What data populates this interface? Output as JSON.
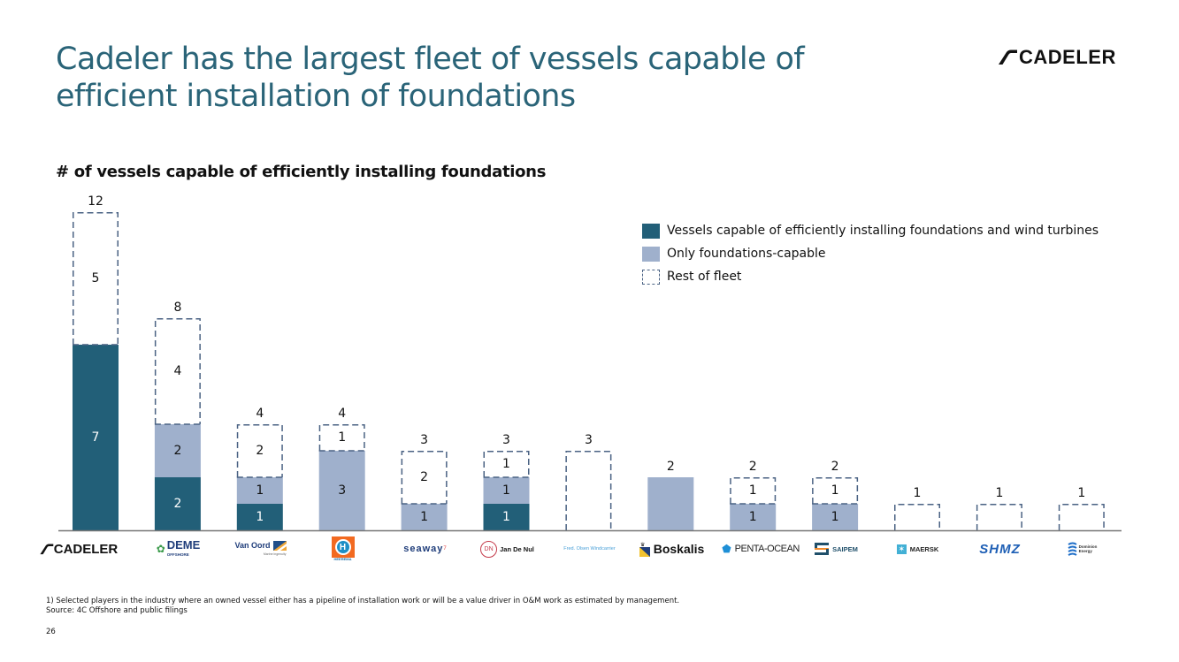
{
  "header": {
    "title": "Cadeler has the largest fleet of vessels capable of efficient installation of foundations",
    "brand": "CADELER"
  },
  "colors": {
    "title": "#2a6478",
    "both_capable": "#225f78",
    "foundations_only": "#9fb0cc",
    "rest_outline": "#4a6283"
  },
  "chart_data": {
    "type": "bar",
    "stacked": true,
    "title": "# of vessels capable of efficiently installing foundations",
    "xlabel": "",
    "ylabel": "",
    "ylim": [
      0,
      12
    ],
    "grid": false,
    "legend_position": "top-right",
    "categories": [
      "Cadeler",
      "DEME Offshore",
      "Van Oord",
      "Heerema",
      "Seaway7",
      "Jan De Nul",
      "Fred. Olsen Windcarrier",
      "Boskalis",
      "Penta-Ocean",
      "Saipem",
      "Maersk",
      "SHMZ",
      "Dominion Energy"
    ],
    "series": [
      {
        "name": "Vessels capable of efficiently installing foundations and wind turbines",
        "style": "solid-dark",
        "values": [
          7,
          2,
          1,
          0,
          0,
          1,
          0,
          0,
          0,
          0,
          0,
          0,
          0
        ]
      },
      {
        "name": "Only foundations-capable",
        "style": "solid-light",
        "values": [
          0,
          2,
          1,
          3,
          1,
          1,
          0,
          2,
          1,
          1,
          0,
          0,
          0
        ]
      },
      {
        "name": "Rest of fleet",
        "style": "dashed-outline",
        "values": [
          5,
          4,
          2,
          1,
          2,
          1,
          3,
          0,
          1,
          1,
          1,
          1,
          1
        ]
      }
    ],
    "totals": [
      12,
      8,
      4,
      4,
      3,
      3,
      3,
      2,
      2,
      2,
      1,
      1,
      1
    ]
  },
  "logos": [
    {
      "name": "cadeler-logo",
      "text": "CADELER"
    },
    {
      "name": "deme-logo",
      "text": "DEME",
      "sub": "OFFSHORE"
    },
    {
      "name": "van-oord-logo",
      "text": "Van Oord",
      "sub": "Marine ingenuity"
    },
    {
      "name": "heerema-logo",
      "text": "H",
      "sub": "HEEREMA"
    },
    {
      "name": "seaway7-logo",
      "text": "seaway",
      "sup": "7"
    },
    {
      "name": "jan-de-nul-logo",
      "text": "Jan De Nul",
      "mark": "DN"
    },
    {
      "name": "fred-olsen-logo",
      "text": "Fred. Olsen Windcarrier"
    },
    {
      "name": "boskalis-logo",
      "text": "Boskalis"
    },
    {
      "name": "penta-ocean-logo",
      "text": "PENTA-OCEAN"
    },
    {
      "name": "saipem-logo",
      "text": "SAIPEM"
    },
    {
      "name": "maersk-logo",
      "text": "MAERSK"
    },
    {
      "name": "shmz-logo",
      "text": "SHMZ"
    },
    {
      "name": "dominion-energy-logo",
      "text": "Dominion",
      "sub": "Energy"
    }
  ],
  "footnote": {
    "note": "1)    Selected players in the industry where an owned vessel either has a pipeline of installation work or will be a value driver in O&M work as estimated by management.",
    "source": "Source: 4C Offshore and public filings"
  },
  "page_number": "26"
}
